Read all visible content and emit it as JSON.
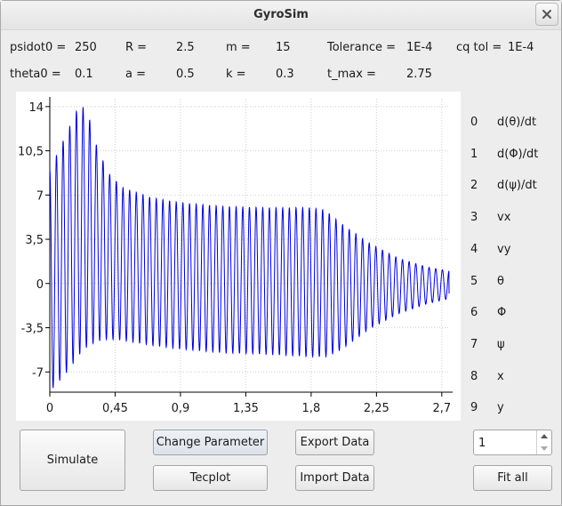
{
  "window": {
    "title": "GyroSim"
  },
  "params": {
    "psidot0": {
      "label": "psidot0 =",
      "value": "250"
    },
    "R": {
      "label": "R =",
      "value": "2.5"
    },
    "m": {
      "label": "m =",
      "value": "15"
    },
    "tolerance": {
      "label": "Tolerance =",
      "value": "1E-4"
    },
    "cqtol": {
      "label": "cq tol =",
      "value": "1E-4"
    },
    "theta0": {
      "label": "theta0 =",
      "value": "0.1"
    },
    "a": {
      "label": "a =",
      "value": "0.5"
    },
    "k": {
      "label": "k =",
      "value": "0.3"
    },
    "tmax": {
      "label": "t_max =",
      "value": "2.75"
    }
  },
  "chart_data": {
    "type": "line",
    "xlim": [
      0,
      2.75
    ],
    "ylim": [
      -8.6,
      14.2
    ],
    "x_ticks": [
      "0",
      "0,45",
      "0,9",
      "1,35",
      "1,8",
      "2,25",
      "2,7"
    ],
    "y_ticks": [
      "14",
      "10,5",
      "7",
      "3,5",
      "0",
      "-3,5",
      "-7"
    ],
    "grid": true,
    "series_color": "#0000dd",
    "envelope": {
      "t": [
        0,
        0.06,
        0.12,
        0.18,
        0.22,
        0.26,
        0.32,
        0.4,
        0.5,
        0.7,
        0.9,
        1.2,
        1.5,
        1.8,
        1.9,
        2.0,
        2.2,
        2.4,
        2.6,
        2.75
      ],
      "upper": [
        9,
        10.5,
        12.0,
        13.6,
        14.0,
        13.6,
        11.0,
        8.8,
        7.6,
        6.8,
        6.4,
        6.1,
        6.0,
        6.0,
        5.8,
        4.8,
        3.2,
        2.0,
        1.3,
        1.0
      ],
      "lower": [
        -8.5,
        -7.8,
        -7.0,
        -6.0,
        -5.4,
        -5.0,
        -4.6,
        -4.4,
        -4.5,
        -4.9,
        -5.2,
        -5.5,
        -5.6,
        -5.8,
        -5.8,
        -5.3,
        -3.6,
        -2.4,
        -1.6,
        -1.2
      ]
    },
    "cycles": 60,
    "end_value": -0.8
  },
  "legend": [
    {
      "index": "0",
      "label": "d(θ)/dt"
    },
    {
      "index": "1",
      "label": "d(Φ)/dt"
    },
    {
      "index": "2",
      "label": "d(ψ)/dt"
    },
    {
      "index": "3",
      "label": "vx"
    },
    {
      "index": "4",
      "label": "vy"
    },
    {
      "index": "5",
      "label": "θ"
    },
    {
      "index": "6",
      "label": "Φ"
    },
    {
      "index": "7",
      "label": "ψ"
    },
    {
      "index": "8",
      "label": "x"
    },
    {
      "index": "9",
      "label": "y"
    }
  ],
  "buttons": {
    "simulate": "Simulate",
    "change_parameter": "Change Parameter",
    "tecplot": "Tecplot",
    "export_data": "Export Data",
    "import_data": "Import Data",
    "fit_all": "Fit all"
  },
  "spinbox": {
    "value": "1"
  },
  "icons": {
    "close": "close-icon",
    "spin_up": "chevron-up-icon",
    "spin_down": "chevron-down-icon"
  }
}
